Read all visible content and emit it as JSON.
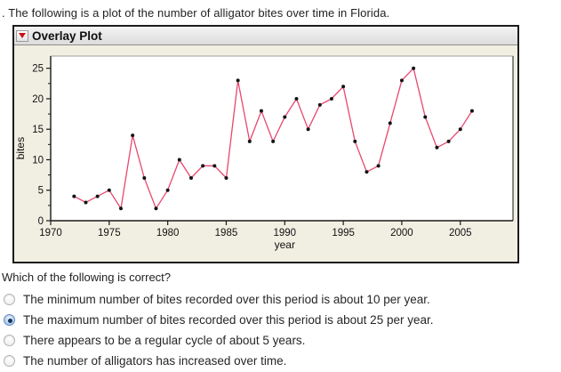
{
  "intro": ". The following is a plot of the number of alligator bites over time in Florida.",
  "panel": {
    "title": "Overlay Plot",
    "disclosure_icon": "red-triangle-down"
  },
  "chart_data": {
    "type": "line",
    "title": "Overlay Plot",
    "xlabel": "year",
    "ylabel": "bites",
    "xlim": [
      1970,
      2009.5
    ],
    "ylim": [
      0,
      27
    ],
    "x_ticks": [
      1970,
      1975,
      1980,
      1985,
      1990,
      1995,
      2000,
      2005
    ],
    "y_ticks": [
      0,
      5,
      10,
      15,
      20,
      25
    ],
    "y_minor_ticks": [
      2.5,
      7.5,
      12.5,
      17.5,
      22.5
    ],
    "grid": false,
    "legend": "none",
    "line_color": "#e8476e",
    "marker_color": "#141414",
    "plot_bg": "#ffffff",
    "panel_bg": "#f1efe2",
    "x": [
      1972,
      1973,
      1974,
      1975,
      1976,
      1977,
      1978,
      1979,
      1980,
      1981,
      1982,
      1983,
      1984,
      1985,
      1986,
      1987,
      1988,
      1989,
      1990,
      1991,
      1992,
      1993,
      1994,
      1995,
      1996,
      1997,
      1998,
      1999,
      2000,
      2001,
      2002,
      2003,
      2004,
      2005,
      2006
    ],
    "values": [
      4,
      3,
      4,
      5,
      2,
      14,
      7,
      2,
      5,
      10,
      7,
      9,
      9,
      7,
      23,
      13,
      18,
      13,
      17,
      20,
      15,
      19,
      20,
      22,
      13,
      8,
      9,
      16,
      23,
      25,
      17,
      12,
      13,
      15,
      18
    ]
  },
  "question": "Which of the following is correct?",
  "options": [
    {
      "label": "The minimum number of bites recorded over this period is about 10 per year.",
      "selected": false
    },
    {
      "label": "The maximum number of bites recorded over this period is about 25 per year.",
      "selected": true
    },
    {
      "label": "There appears to be a regular cycle of about 5 years.",
      "selected": false
    },
    {
      "label": "The number of alligators has increased over time.",
      "selected": false
    }
  ]
}
